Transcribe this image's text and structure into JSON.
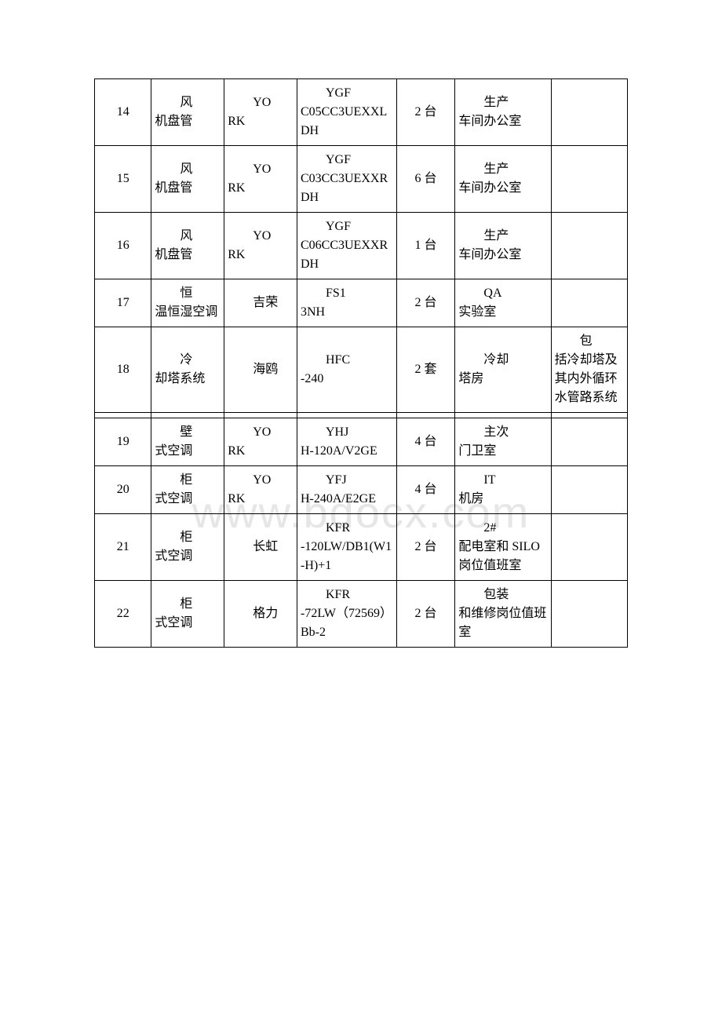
{
  "watermark": "www.bdocx.com",
  "rows": [
    {
      "num": "14",
      "name": "风机盘管",
      "brand": "YORK",
      "model": "YGFC05CC3UEXXLDH",
      "qty": "2 台",
      "loc": "生产车间办公室",
      "note": ""
    },
    {
      "num": "15",
      "name": "风机盘管",
      "brand": "YORK",
      "model": "YGFC03CC3UEXXRDH",
      "qty": "6 台",
      "loc": "生产车间办公室",
      "note": ""
    },
    {
      "num": "16",
      "name": "风机盘管",
      "brand": "YORK",
      "model": "YGFC06CC3UEXXRDH",
      "qty": "1 台",
      "loc": "生产车间办公室",
      "note": ""
    },
    {
      "num": "17",
      "name": "恒温恒湿空调",
      "brand": "吉荣",
      "model": "FS13NH",
      "qty": "2 台",
      "loc": "QA实验室",
      "note": ""
    },
    {
      "num": "18",
      "name": "冷却塔系统",
      "brand": "海鸥",
      "model": "HFC-240",
      "qty": "2 套",
      "loc": "冷却塔房",
      "note": "包括冷却塔及其内外循环水管路系统"
    },
    {
      "num": "19",
      "name": "壁式空调",
      "brand": "YORK",
      "model": "YHJH-120A/V2GE",
      "qty": "4 台",
      "loc": "主次门卫室",
      "note": ""
    },
    {
      "num": "20",
      "name": "柜式空调",
      "brand": "YORK",
      "model": "YFJH-240A/E2GE",
      "qty": "4 台",
      "loc": "IT机房",
      "note": ""
    },
    {
      "num": "21",
      "name": "柜式空调",
      "brand": "长虹",
      "model": "KFR-120LW/DB1(W1-H)+1",
      "qty": "2 台",
      "loc": "2#配电室和 SILO岗位值班室",
      "note": ""
    },
    {
      "num": "22",
      "name": "柜式空调",
      "brand": "格力",
      "model": "KFR-72LW（72569）Bb-2",
      "qty": "2 台",
      "loc": "包装和维修岗位值班室",
      "note": ""
    }
  ],
  "columns": [
    "num",
    "name",
    "brand",
    "model",
    "qty",
    "loc",
    "note"
  ]
}
